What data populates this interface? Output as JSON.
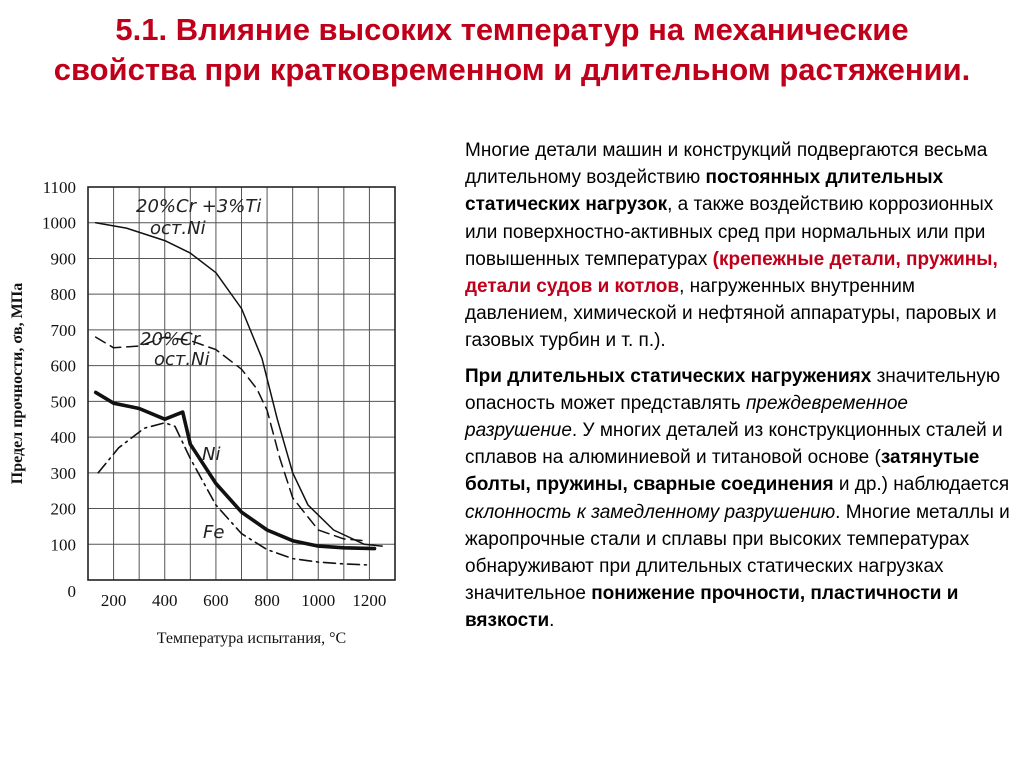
{
  "title": "5.1. Влияние высоких температур на механические свойства при кратковременном и длительном растяжении.",
  "paragraph1": {
    "t1": "Многие детали машин и конструкций подвергаются весьма длительному воздействию ",
    "b1": "постоянных длительных статических нагрузок",
    "t2": ", а также воздействию коррозионных или поверхностно-активных сред при нормальных или при повышенных температурах ",
    "r1": "(крепежные детали, пружины, детали судов и котлов",
    "t3": ", нагруженных внутренним давлением, химической и нефтяной аппаратуры, паровых и газовых турбин и т. п.)."
  },
  "paragraph2": {
    "b1": "При длительных статических нагружениях",
    "t1": " значительную опасность может представлять ",
    "i1": "преждевременное разрушение",
    "t2": ". У многих деталей из конструкционных сталей и сплавов на алюминиевой и титановой основе (",
    "b2": "затянутые болты, пружины, сварные соединения",
    "t3": " и др.) наблюдается ",
    "i2": "склонность к замедленному разрушению",
    "t4": ". Многие металлы и жаропрочные стали и сплавы при высоких температурах обнаруживают при длительных статических нагрузках значительное ",
    "b3": "понижение прочности, пластичности и вязкости",
    "t5": "."
  },
  "chart_data": {
    "type": "line",
    "xlabel": "Температура испытания, °С",
    "ylabel": "Предел прочности, σв, МПа",
    "xlim": [
      100,
      1300
    ],
    "ylim": [
      0,
      1100
    ],
    "x_ticks": [
      "200",
      "400",
      "600",
      "800",
      "1000",
      "1200"
    ],
    "y_ticks": [
      "0",
      "100",
      "200",
      "300",
      "400",
      "500",
      "600",
      "700",
      "800",
      "900",
      "1000",
      "1100"
    ],
    "grid": true,
    "series": [
      {
        "name": "20%Cr +3%Ti ост.Ni",
        "label_lines": [
          "20%Cr +3%Ti",
          "ост.Ni"
        ],
        "style": "solid-thin",
        "x": [
          130,
          250,
          400,
          500,
          600,
          700,
          780,
          840,
          900,
          960,
          1060,
          1180,
          1250
        ],
        "y": [
          1000,
          985,
          950,
          915,
          860,
          760,
          620,
          450,
          300,
          210,
          140,
          100,
          95
        ]
      },
      {
        "name": "20%Cr ост.Ni",
        "label_lines": [
          "20%Cr",
          "ост.Ni"
        ],
        "style": "dashed",
        "x": [
          130,
          200,
          300,
          400,
          500,
          600,
          700,
          760,
          800,
          850,
          900,
          1000,
          1100,
          1180
        ],
        "y": [
          680,
          650,
          655,
          680,
          670,
          645,
          590,
          535,
          475,
          340,
          230,
          140,
          115,
          110
        ]
      },
      {
        "name": "Ni",
        "label_lines": [
          "Ni"
        ],
        "style": "solid-bold",
        "x": [
          130,
          200,
          300,
          400,
          470,
          500,
          600,
          700,
          800,
          900,
          1000,
          1100,
          1220
        ],
        "y": [
          525,
          495,
          480,
          450,
          470,
          380,
          270,
          190,
          140,
          110,
          95,
          90,
          88
        ]
      },
      {
        "name": "Fe",
        "label_lines": [
          "Fe"
        ],
        "style": "dashdot",
        "x": [
          140,
          220,
          320,
          400,
          440,
          500,
          600,
          700,
          800,
          900,
          1000,
          1100,
          1200
        ],
        "y": [
          300,
          370,
          425,
          440,
          430,
          340,
          210,
          130,
          85,
          60,
          50,
          45,
          42
        ]
      }
    ]
  }
}
